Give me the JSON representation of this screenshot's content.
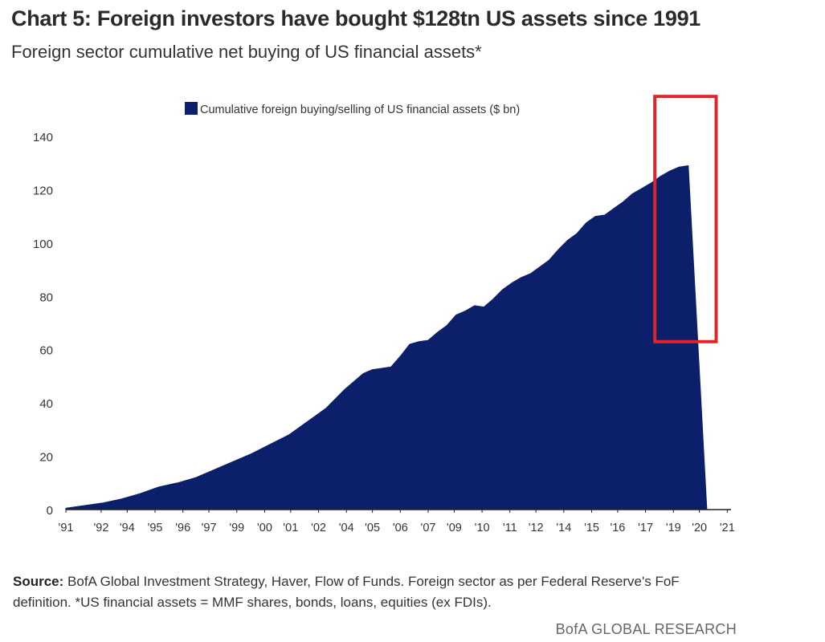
{
  "title": "Chart 5: Foreign investors have bought $128tn US assets since 1991",
  "subtitle": "Foreign sector cumulative net buying of US financial assets*",
  "source": {
    "label": "Source:",
    "text": "BofA Global Investment Strategy, Haver, Flow of Funds. Foreign sector as per Federal Reserve's FoF definition. *US financial assets = MMF shares, bonds, loans, equities (ex FDIs)."
  },
  "brand": "BofA GLOBAL RESEARCH",
  "colors": {
    "area": "#0b1f6b",
    "highlight": "#e0242a",
    "axis": "#222222",
    "text": "#333333"
  },
  "chart_data": {
    "type": "area",
    "title": "",
    "xlabel": "",
    "ylabel": "",
    "ylim": [
      0,
      140
    ],
    "yticks": [
      0,
      20,
      40,
      60,
      80,
      100,
      120,
      140
    ],
    "xlim": [
      1991,
      2026.8
    ],
    "xticks": [
      {
        "label": "'91",
        "x": 1991
      },
      {
        "label": "'92",
        "x": 1992.9
      },
      {
        "label": "'94",
        "x": 1994.3
      },
      {
        "label": "'95",
        "x": 1995.8
      },
      {
        "label": "'96",
        "x": 1997.3
      },
      {
        "label": "'97",
        "x": 1998.7
      },
      {
        "label": "'99",
        "x": 2000.2
      },
      {
        "label": "'00",
        "x": 2001.7
      },
      {
        "label": "'01",
        "x": 2003.1
      },
      {
        "label": "'02",
        "x": 2004.6
      },
      {
        "label": "'04",
        "x": 2006.1
      },
      {
        "label": "'05",
        "x": 2007.5
      },
      {
        "label": "'06",
        "x": 2009.0
      },
      {
        "label": "'07",
        "x": 2010.5
      },
      {
        "label": "'09",
        "x": 2011.9
      },
      {
        "label": "'10",
        "x": 2013.4
      },
      {
        "label": "'11",
        "x": 2014.9
      },
      {
        "label": "'12",
        "x": 2016.3
      },
      {
        "label": "'14",
        "x": 2017.8
      },
      {
        "label": "'15",
        "x": 2019.3
      },
      {
        "label": "'16",
        "x": 2020.7
      },
      {
        "label": "'17",
        "x": 2022.2
      },
      {
        "label": "'19",
        "x": 2023.7
      },
      {
        "label": "'20",
        "x": 2025.1
      },
      {
        "label": "'21",
        "x": 2026.6
      }
    ],
    "legend": {
      "position": "top-center",
      "entries": [
        "Cumulative foreign buying/selling of US financial assets ($ bn)"
      ]
    },
    "grid": false,
    "series": [
      {
        "name": "Cumulative foreign buying/selling of US financial assets ($ bn)",
        "x": [
          1991,
          1992,
          1993,
          1994,
          1995,
          1996,
          1997,
          1998,
          1999,
          2000,
          2001,
          2002,
          2003,
          2004,
          2005,
          2006,
          2007,
          2007.5,
          2008,
          2008.5,
          2009,
          2009.5,
          2010,
          2010.5,
          2011,
          2011.5,
          2012,
          2012.5,
          2013,
          2013.5,
          2014,
          2014.5,
          2015,
          2015.5,
          2016,
          2016.5,
          2017,
          2017.5,
          2018,
          2018.5,
          2019,
          2019.5,
          2020,
          2020.5,
          2021,
          2021.5,
          2022,
          2022.5,
          2023,
          2023.5,
          2024,
          2024.5,
          2025.5
        ],
        "values": [
          0.5,
          1.5,
          2.5,
          4,
          6,
          8.5,
          10,
          12,
          15,
          18,
          21,
          24.5,
          28,
          33,
          38,
          45,
          51,
          52.5,
          53,
          53.5,
          57.5,
          62,
          63,
          63.5,
          66.5,
          69,
          73,
          74.5,
          76.5,
          76,
          79,
          82.5,
          85,
          87,
          88.5,
          91,
          93.5,
          97.5,
          101,
          103.5,
          107.5,
          110,
          110.5,
          113,
          115.5,
          118.5,
          120.5,
          122.5,
          125,
          127,
          128.5,
          129,
          0
        ]
      }
    ],
    "annotations": [
      {
        "type": "highlight-box",
        "color": "#e0242a",
        "x_range": [
          2022.7,
          2026.0
        ],
        "y_range": [
          63,
          155
        ]
      }
    ]
  }
}
